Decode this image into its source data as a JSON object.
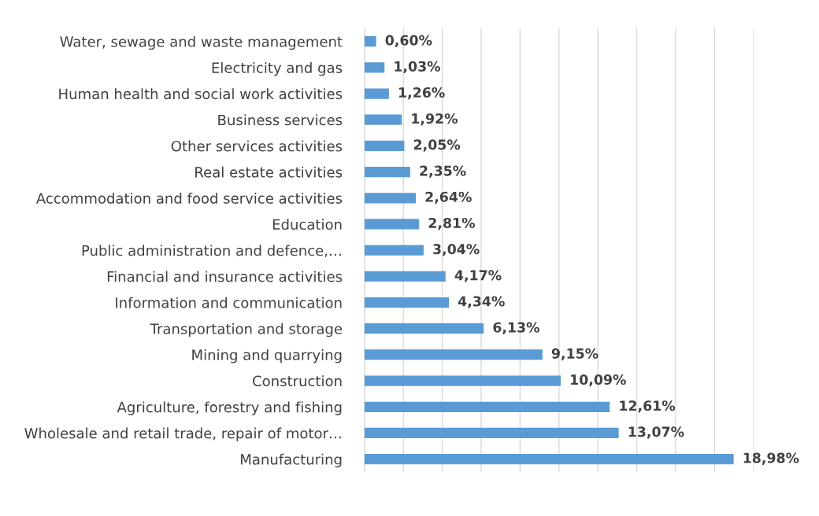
{
  "chart_data": {
    "type": "bar",
    "orientation": "horizontal",
    "categories": [
      "Water, sewage and waste management",
      "Electricity and gas",
      "Human health and social work activities",
      "Business services",
      "Other services activities",
      "Real estate activities",
      "Accommodation and food service activities",
      "Education",
      "Public administration and defence,…",
      "Financial and insurance activities",
      "Information and communication",
      "Transportation and storage",
      "Mining and quarrying",
      "Construction",
      "Agriculture, forestry and fishing",
      "Wholesale and retail trade, repair of motor…",
      "Manufacturing"
    ],
    "values": [
      0.6,
      1.03,
      1.26,
      1.92,
      2.05,
      2.35,
      2.64,
      2.81,
      3.04,
      4.17,
      4.34,
      6.13,
      9.15,
      10.09,
      12.61,
      13.07,
      18.98
    ],
    "value_labels": [
      "0,60%",
      "1,03%",
      "1,26%",
      "1,92%",
      "2,05%",
      "2,35%",
      "2,64%",
      "2,81%",
      "3,04%",
      "4,17%",
      "4,34%",
      "6,13%",
      "9,15%",
      "10,09%",
      "12,61%",
      "13,07%",
      "18,98%"
    ],
    "color": "#5b9bd5",
    "xlim": [
      0,
      20
    ],
    "xticks": [
      {
        "value": 0,
        "label": null
      },
      {
        "value": 2,
        "label": null
      },
      {
        "value": 4,
        "label": null
      },
      {
        "value": 6,
        "label": null
      },
      {
        "value": 8,
        "label": null
      },
      {
        "value": 10,
        "label": null
      },
      {
        "value": 12,
        "label": null
      },
      {
        "value": 14,
        "label": null
      },
      {
        "value": 16,
        "label": null
      },
      {
        "value": 18,
        "label": null
      },
      {
        "value": 20,
        "label": null
      }
    ],
    "tick_labels": "y",
    "grid": "x",
    "legend": false
  }
}
